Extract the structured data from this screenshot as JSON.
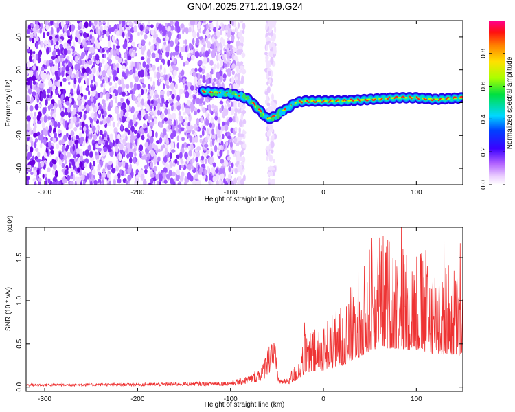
{
  "chart_data": [
    {
      "type": "heatmap",
      "title": "GN04.2025.271.21.19.G24",
      "xlabel": "Height of straight line (km)",
      "ylabel": "Frequency (Hz)",
      "xlim": [
        -320,
        150
      ],
      "ylim": [
        -50,
        50
      ],
      "xticks": [
        -300,
        -200,
        -100,
        0,
        100
      ],
      "yticks": [
        -40,
        -20,
        0,
        20,
        40
      ],
      "noise_region_km": [
        -320,
        -95
      ],
      "sparse_noise_columns_km": [
        [
          -95,
          -85
        ],
        [
          -62,
          -52
        ]
      ],
      "ridge": {
        "name": "signal track",
        "x": [
          -130,
          -110,
          -95,
          -80,
          -70,
          -60,
          -50,
          -45,
          -40,
          -30,
          -20,
          0,
          20,
          50,
          80,
          100,
          120,
          150
        ],
        "y": [
          7,
          6,
          5,
          2,
          -4,
          -10,
          -8,
          -5,
          -4,
          0,
          1,
          1,
          1,
          2,
          3,
          3,
          2,
          3
        ]
      },
      "colorbar": {
        "label": "Normalized spectral amplitude",
        "ticks": [
          "0.0",
          "0.2",
          "0.4",
          "0.6",
          "0.8"
        ],
        "range": [
          0,
          1
        ],
        "colors": [
          "#ffffff",
          "#e0b0ff",
          "#8a2be2",
          "#0000ff",
          "#00d8ff",
          "#00e000",
          "#ffff00",
          "#ff8c00",
          "#ff0000",
          "#ff0090"
        ]
      }
    },
    {
      "type": "line",
      "xlabel": "Height of straight line (km)",
      "ylabel": "SNR (10 * v/v)",
      "multiplier": "(x10⁴)",
      "xlim": [
        -320,
        150
      ],
      "ylim": [
        -0.05,
        1.85
      ],
      "xticks": [
        -300,
        -200,
        -100,
        0,
        100
      ],
      "yticks": [
        "0.0",
        "0.5",
        "1.0",
        "1.5"
      ],
      "series": [
        {
          "name": "SNR",
          "color": "#ee3333",
          "envelope_x": [
            -320,
            -200,
            -100,
            -80,
            -65,
            -58,
            -55,
            -52,
            -48,
            -40,
            -30,
            -20,
            -10,
            0,
            20,
            40,
            50,
            60,
            80,
            100,
            120,
            140,
            150
          ],
          "envelope_y": [
            0.03,
            0.035,
            0.05,
            0.1,
            0.2,
            0.5,
            0.6,
            0.45,
            0.1,
            0.08,
            0.2,
            0.45,
            0.5,
            0.55,
            0.7,
            1.0,
            1.2,
            1.3,
            1.25,
            1.2,
            1.1,
            1.05,
            1.0
          ]
        }
      ]
    }
  ]
}
